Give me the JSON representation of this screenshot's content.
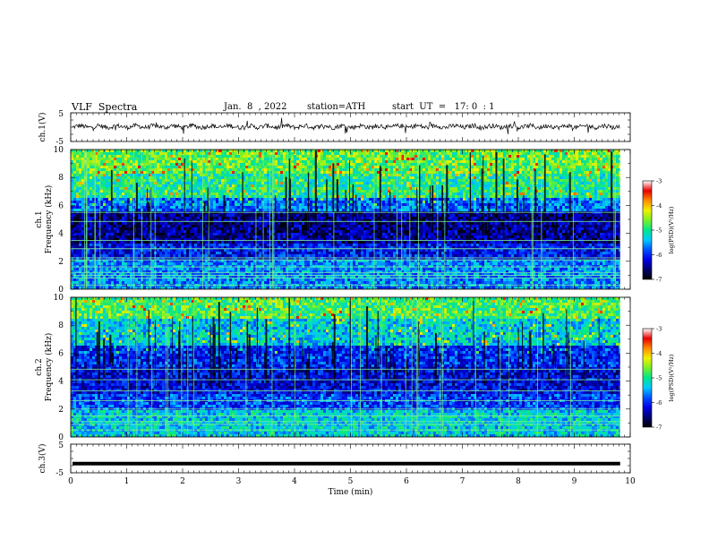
{
  "header": {
    "title": "VLF  Spectra",
    "date": "Jan.  8  , 2022",
    "station": "station=ATH",
    "start": "start  UT  =   17: 0  : 1"
  },
  "chart_data": [
    {
      "type": "line",
      "panel": "ch1-waveform",
      "ylabel": "ch.1(V)",
      "yticks": [
        "5",
        "-5"
      ],
      "ylim": [
        -5,
        5
      ],
      "xlim": [
        0,
        10
      ],
      "x_end": 9.82,
      "baseline": 0.2,
      "color": "#000000"
    },
    {
      "type": "heatmap",
      "panel": "ch1-spectrogram",
      "ylabel": "ch.1\nFrequency  (kHz)",
      "ylabel_line1": "ch.1",
      "ylabel_line2": "Frequency  (kHz)",
      "yticks": [
        "0",
        "2",
        "4",
        "6",
        "8",
        "10"
      ],
      "ylim": [
        0,
        10
      ],
      "xlim": [
        0,
        10
      ],
      "x_end": 9.82,
      "colorbar": {
        "label": "log(PSD)(V²/Hz)",
        "ticks": [
          "-3",
          "-4",
          "-5",
          "-6",
          "-7"
        ],
        "range": [
          -7,
          -3
        ]
      },
      "bands": [
        {
          "f": [
            8.2,
            10.0
          ],
          "level": -4.7
        },
        {
          "f": [
            6.5,
            8.2
          ],
          "level": -5.0
        },
        {
          "f": [
            5.5,
            6.5
          ],
          "level": -5.7
        },
        {
          "f": [
            3.2,
            5.5
          ],
          "level": -6.5
        },
        {
          "f": [
            2.2,
            3.2
          ],
          "level": -6.1
        },
        {
          "f": [
            0.0,
            2.2
          ],
          "level": -5.6
        }
      ],
      "lines_khz": [
        0.3,
        0.8,
        1.0,
        1.2,
        1.6,
        2.1,
        2.25,
        2.9,
        3.5,
        4.85,
        5.5
      ]
    },
    {
      "type": "heatmap",
      "panel": "ch2-spectrogram",
      "ylabel": "ch.2\nFrequency  (kHz)",
      "ylabel_line1": "ch.2",
      "ylabel_line2": "Frequency  (kHz)",
      "yticks": [
        "0",
        "2",
        "4",
        "6",
        "8",
        "10"
      ],
      "ylim": [
        0,
        10
      ],
      "xlim": [
        0,
        10
      ],
      "x_end": 9.82,
      "colorbar": {
        "label": "log(PSD)(V²/Hz)",
        "ticks": [
          "-3",
          "-4",
          "-5",
          "-6",
          "-7"
        ],
        "range": [
          -7,
          -3
        ]
      },
      "bands": [
        {
          "f": [
            8.5,
            10.0
          ],
          "level": -4.8
        },
        {
          "f": [
            6.5,
            8.5
          ],
          "level": -5.3
        },
        {
          "f": [
            5.0,
            6.5
          ],
          "level": -6.0
        },
        {
          "f": [
            3.0,
            5.0
          ],
          "level": -6.2
        },
        {
          "f": [
            2.0,
            3.0
          ],
          "level": -5.9
        },
        {
          "f": [
            0.0,
            2.0
          ],
          "level": -5.3
        }
      ],
      "lines_khz": [
        0.5,
        0.9,
        1.1,
        1.5,
        2.0,
        2.6,
        3.3,
        4.1,
        4.85
      ]
    },
    {
      "type": "line",
      "panel": "ch3-waveform",
      "ylabel": "ch.3(V)",
      "yticks": [
        "5",
        "-5"
      ],
      "ylim": [
        -5,
        5
      ],
      "xlim": [
        0,
        10
      ],
      "x_end": 9.82,
      "baseline": -1.8,
      "xlabel": "Time  (min)",
      "xticks": [
        "0",
        "1",
        "2",
        "3",
        "4",
        "5",
        "6",
        "7",
        "8",
        "9",
        "10"
      ],
      "color": "#000000"
    }
  ]
}
